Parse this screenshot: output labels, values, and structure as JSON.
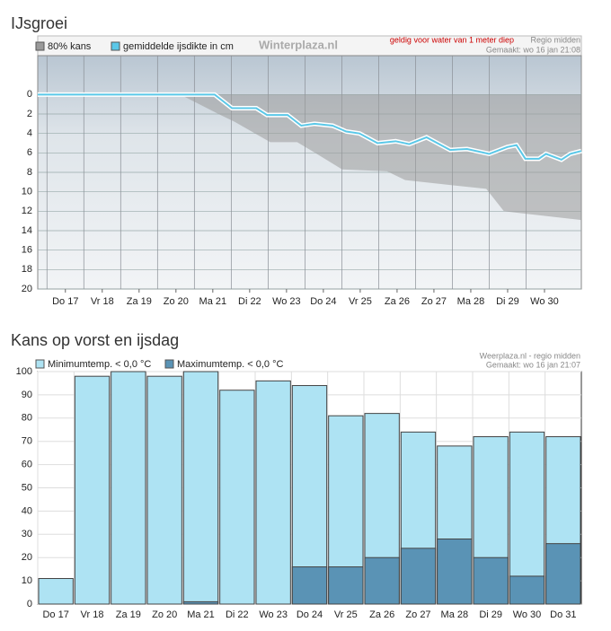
{
  "chart_data": [
    {
      "type": "line",
      "title": "IJsgroei",
      "watermark": "Winterplaza.nl",
      "note": "geldig voor water van 1 meter diep",
      "region": "Regio midden",
      "created": "Gemaakt: wo 16 jan 21:08",
      "xlim": [
        16.25,
        31
      ],
      "xticks": [
        {
          "value": 17,
          "label": "Do 17"
        },
        {
          "value": 18,
          "label": "Vr 18"
        },
        {
          "value": 19,
          "label": "Za 19"
        },
        {
          "value": 20,
          "label": "Zo 20"
        },
        {
          "value": 21,
          "label": "Ma 21"
        },
        {
          "value": 22,
          "label": "Di 22"
        },
        {
          "value": 23,
          "label": "Wo 23"
        },
        {
          "value": 24,
          "label": "Do 24"
        },
        {
          "value": 25,
          "label": "Vr 25"
        },
        {
          "value": 26,
          "label": "Za 26"
        },
        {
          "value": 27,
          "label": "Zo 27"
        },
        {
          "value": 28,
          "label": "Ma 28"
        },
        {
          "value": 29,
          "label": "Di 29"
        },
        {
          "value": 30,
          "label": "Wo 30"
        }
      ],
      "ylim": [
        -4,
        20
      ],
      "inverted": true,
      "yticks": [
        0,
        2,
        4,
        6,
        8,
        10,
        12,
        14,
        16,
        18,
        20
      ],
      "grid": true,
      "band": {
        "name": "80% kans",
        "color": "#9a9a9a",
        "x": [
          20.12,
          21.1,
          21.59,
          22.56,
          23.29,
          23.78,
          24.51,
          25.73,
          26.22,
          28.42,
          28.9,
          31
        ],
        "values": [
          0,
          1.9,
          2.8,
          4.9,
          4.9,
          6.0,
          7.7,
          7.9,
          8.8,
          9.7,
          12.0,
          12.9
        ]
      },
      "series": [
        {
          "name": "gemiddelde ijsdikte in cm",
          "color": "#5bc8e8",
          "x": [
            16.25,
            21.05,
            21.52,
            22.18,
            22.47,
            23.03,
            23.4,
            23.76,
            24.25,
            24.62,
            24.98,
            25.47,
            25.96,
            26.33,
            26.8,
            27.44,
            27.9,
            28.5,
            28.99,
            29.24,
            29.48,
            29.85,
            30.04,
            30.46,
            30.7,
            31
          ],
          "values": [
            0,
            0,
            1.4,
            1.4,
            2.1,
            2.1,
            3.2,
            3.0,
            3.2,
            3.8,
            4.0,
            5.0,
            4.8,
            5.1,
            4.4,
            5.7,
            5.6,
            6.1,
            5.4,
            5.2,
            6.6,
            6.6,
            6.1,
            6.7,
            6.1,
            5.8
          ]
        }
      ]
    },
    {
      "type": "bar",
      "title": "Kans op vorst en ijsdag",
      "source": "Weerplaza.nl - regio midden",
      "created": "Gemaakt: wo 16 jan 21:07",
      "categories": [
        "Do 17",
        "Vr 18",
        "Za 19",
        "Zo 20",
        "Ma 21",
        "Di 22",
        "Wo 23",
        "Do 24",
        "Vr 25",
        "Za 26",
        "Zo 27",
        "Ma 28",
        "Di 29",
        "Wo 30",
        "Do 31"
      ],
      "ylim": [
        0,
        100
      ],
      "yticks": [
        0,
        10,
        20,
        30,
        40,
        50,
        60,
        70,
        80,
        90,
        100
      ],
      "grid": true,
      "overlay": true,
      "series": [
        {
          "name": "Minimumtemp. < 0,0 °C",
          "color": "#aee3f3",
          "values": [
            11,
            98,
            100,
            98,
            100,
            92,
            96,
            94,
            81,
            82,
            74,
            68,
            72,
            74,
            72
          ]
        },
        {
          "name": "Maximumtemp. < 0,0 °C",
          "color": "#5a93b5",
          "values": [
            0,
            0,
            0,
            0,
            1,
            0,
            0,
            16,
            16,
            20,
            24,
            28,
            20,
            12,
            26
          ]
        }
      ]
    }
  ]
}
